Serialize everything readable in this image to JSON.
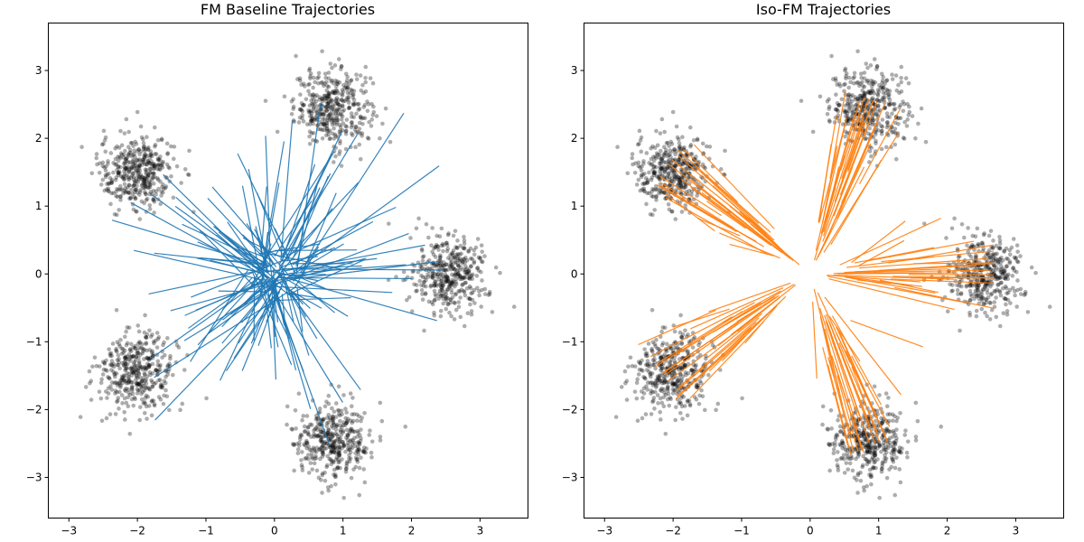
{
  "chart_data": [
    {
      "type": "scatter",
      "title": "FM Baseline Trajectories",
      "xlabel": "",
      "ylabel": "",
      "xlim": [
        -3.3,
        3.7
      ],
      "ylim": [
        -3.6,
        3.7
      ],
      "xticks": [
        -3,
        -2,
        -1,
        0,
        1,
        2,
        3
      ],
      "yticks": [
        -3,
        -2,
        -1,
        0,
        1,
        2,
        3
      ],
      "grid": false,
      "trajectory_color": "#1f77b4",
      "point_color": "#000000",
      "clusters": [
        {
          "center": [
            0.85,
            2.45
          ],
          "spread": 0.28
        },
        {
          "center": [
            -2.0,
            1.5
          ],
          "spread": 0.28
        },
        {
          "center": [
            2.55,
            0.0
          ],
          "spread": 0.28
        },
        {
          "center": [
            -2.0,
            -1.45
          ],
          "spread": 0.28
        },
        {
          "center": [
            0.85,
            -2.45
          ],
          "spread": 0.28
        }
      ],
      "points_per_cluster": 400,
      "num_trajectories": 150,
      "trajectory_style": "diffuse"
    },
    {
      "type": "scatter",
      "title": "Iso-FM Trajectories",
      "xlabel": "",
      "ylabel": "",
      "xlim": [
        -3.3,
        3.7
      ],
      "ylim": [
        -3.6,
        3.7
      ],
      "xticks": [
        -3,
        -2,
        -1,
        0,
        1,
        2,
        3
      ],
      "yticks": [
        -3,
        -2,
        -1,
        0,
        1,
        2,
        3
      ],
      "grid": false,
      "trajectory_color": "#ff7f0e",
      "point_color": "#000000",
      "clusters": [
        {
          "center": [
            0.85,
            2.45
          ],
          "spread": 0.28
        },
        {
          "center": [
            -2.0,
            1.5
          ],
          "spread": 0.28
        },
        {
          "center": [
            2.55,
            0.0
          ],
          "spread": 0.28
        },
        {
          "center": [
            -2.0,
            -1.45
          ],
          "spread": 0.28
        },
        {
          "center": [
            0.85,
            -2.45
          ],
          "spread": 0.28
        }
      ],
      "points_per_cluster": 400,
      "num_trajectories": 150,
      "trajectory_style": "radial"
    }
  ]
}
